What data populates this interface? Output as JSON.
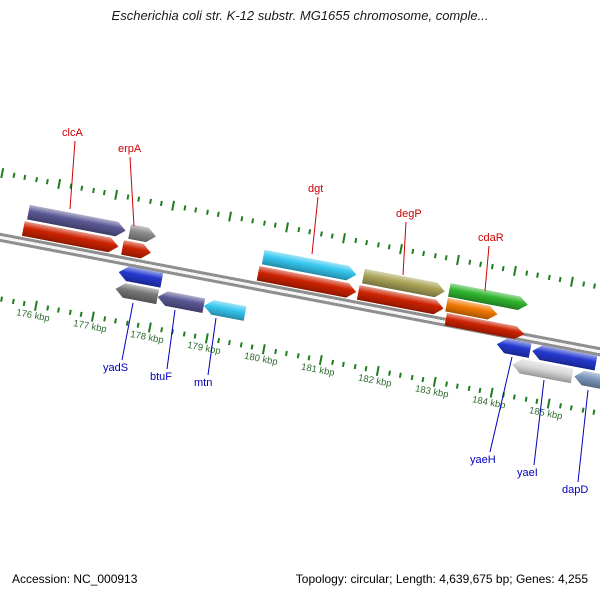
{
  "title": "Escherichia coli str. K-12 substr. MG1655 chromosome, comple...",
  "status_bar": {
    "accession": "Accession: NC_000913",
    "summary": "Topology: circular; Length: 4,639,675 bp; Genes: 4,255"
  },
  "ruler": {
    "unit": "kbp",
    "labels": [
      "176 kbp",
      "177 kbp",
      "178 kbp",
      "179 kbp",
      "180 kbp",
      "181 kbp",
      "182 kbp",
      "183 kbp",
      "184 kbp",
      "185 kbp"
    ]
  },
  "genes": {
    "forward_labels": [
      "clcA",
      "erpA",
      "dgt",
      "degP",
      "cdaR"
    ],
    "reverse_labels": [
      "yadS",
      "btuF",
      "mtn",
      "yaeH",
      "yaeI",
      "dapD"
    ]
  },
  "colors": {
    "tick_green": "#1e7d1e",
    "ruler_text": "#2e6b2e",
    "label_fwd": "#cc0000",
    "label_rev": "#0000bb",
    "backbone_gray": "#8f8f8f",
    "arrow_red": "#cc2200",
    "arrow_purple": "#5a5794",
    "arrow_gray": "#8a8a8a",
    "arrow_gray_dark": "#767676",
    "arrow_cyan": "#35c7f0",
    "arrow_olive": "#a9a256",
    "arrow_green": "#2fb52f",
    "arrow_orange": "#f07800",
    "arrow_blue": "#2438cf",
    "arrow_lightgray": "#d8d8d8",
    "arrow_steel": "#7b97bb"
  }
}
